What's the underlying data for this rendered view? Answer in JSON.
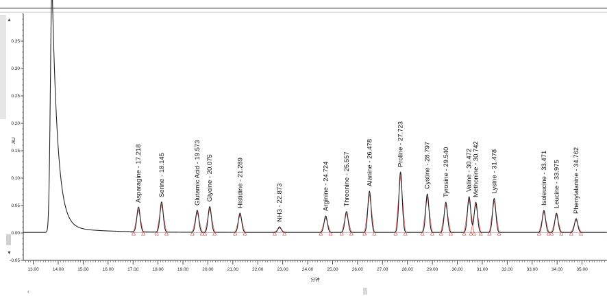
{
  "chart_data": {
    "type": "line",
    "title": "",
    "xlabel": "分钟",
    "ylabel": "AU",
    "xlim": [
      12.6,
      36.0
    ],
    "ylim": [
      -0.05,
      0.4
    ],
    "x_ticks": [
      13.0,
      14.0,
      15.0,
      16.0,
      17.0,
      18.0,
      19.0,
      20.0,
      21.0,
      22.0,
      23.0,
      24.0,
      25.0,
      26.0,
      27.0,
      28.0,
      29.0,
      30.0,
      31.0,
      32.0,
      33.0,
      34.0,
      35.0
    ],
    "x_tick_labels": [
      "13.00",
      "14.00",
      "15.00",
      "16.00",
      "17.00",
      "18.00",
      "19.00",
      "20.00",
      "21.00",
      "22.00",
      "23.00",
      "24.00",
      "25.00",
      "26.00",
      "27.00",
      "28.00",
      "29.00",
      "30.00",
      "31.00",
      "32.00",
      "33.00",
      "34.00",
      "35.00"
    ],
    "y_ticks": [
      -0.05,
      0.0,
      0.05,
      0.1,
      0.15,
      0.2,
      0.25,
      0.3,
      0.35
    ],
    "y_tick_labels": [
      "-0.05",
      "0.00",
      "0.05",
      "0.10",
      "0.15",
      "0.20",
      "0.25",
      "0.30",
      "0.35"
    ],
    "grid": false,
    "solvent_peak": {
      "x": 13.75,
      "y": 0.45
    },
    "peaks": [
      {
        "name": "Asparagine",
        "rt": 17.218,
        "height": 0.045,
        "label": "Asparagine - 17.218"
      },
      {
        "name": "Serine",
        "rt": 18.145,
        "height": 0.055,
        "label": "Serine - 18.145"
      },
      {
        "name": "Glutamic Acid",
        "rt": 19.573,
        "height": 0.04,
        "label": "Glutamic Acid - 19.573"
      },
      {
        "name": "Glycine",
        "rt": 20.075,
        "height": 0.047,
        "label": "Glycine - 20.075"
      },
      {
        "name": "Histidine",
        "rt": 21.289,
        "height": 0.035,
        "label": "Histidine - 21.289"
      },
      {
        "name": "NH3",
        "rt": 22.873,
        "height": 0.01,
        "label": "NH3 - 22.873"
      },
      {
        "name": "Arginine",
        "rt": 24.724,
        "height": 0.03,
        "label": "Arginine - 24.724"
      },
      {
        "name": "Threonine",
        "rt": 25.557,
        "height": 0.038,
        "label": "Threonine - 25.557"
      },
      {
        "name": "Alanine",
        "rt": 26.478,
        "height": 0.075,
        "label": "Alanine - 26.478"
      },
      {
        "name": "Proline",
        "rt": 27.723,
        "height": 0.11,
        "label": "Proline - 27.723"
      },
      {
        "name": "Cystine",
        "rt": 28.797,
        "height": 0.07,
        "label": "Cystine - 28.797"
      },
      {
        "name": "Tyrosine",
        "rt": 29.54,
        "height": 0.055,
        "label": "Tyrosine - 29.540"
      },
      {
        "name": "Valine",
        "rt": 30.472,
        "height": 0.065,
        "label": "Valine - 30.472"
      },
      {
        "name": "Methionine",
        "rt": 30.742,
        "height": 0.055,
        "label": "Methonine - 30.742"
      },
      {
        "name": "Lysine",
        "rt": 31.478,
        "height": 0.062,
        "label": "Lysine - 31.478"
      },
      {
        "name": "Isoleucine",
        "rt": 33.471,
        "height": 0.04,
        "label": "Isoleucine - 33.471"
      },
      {
        "name": "Leucine",
        "rt": 33.975,
        "height": 0.035,
        "label": "Leucine - 33.975"
      },
      {
        "name": "Phenylalanine",
        "rt": 34.762,
        "height": 0.025,
        "label": "Phenylalanine - 34.762"
      }
    ],
    "colors": {
      "trace": "#222222",
      "baseline_marker": "#d9534f",
      "axis": "#333333"
    }
  },
  "scrollbar": {
    "left_arrow": "‹",
    "up_arrow": "▲",
    "down_arrow": "▼"
  }
}
